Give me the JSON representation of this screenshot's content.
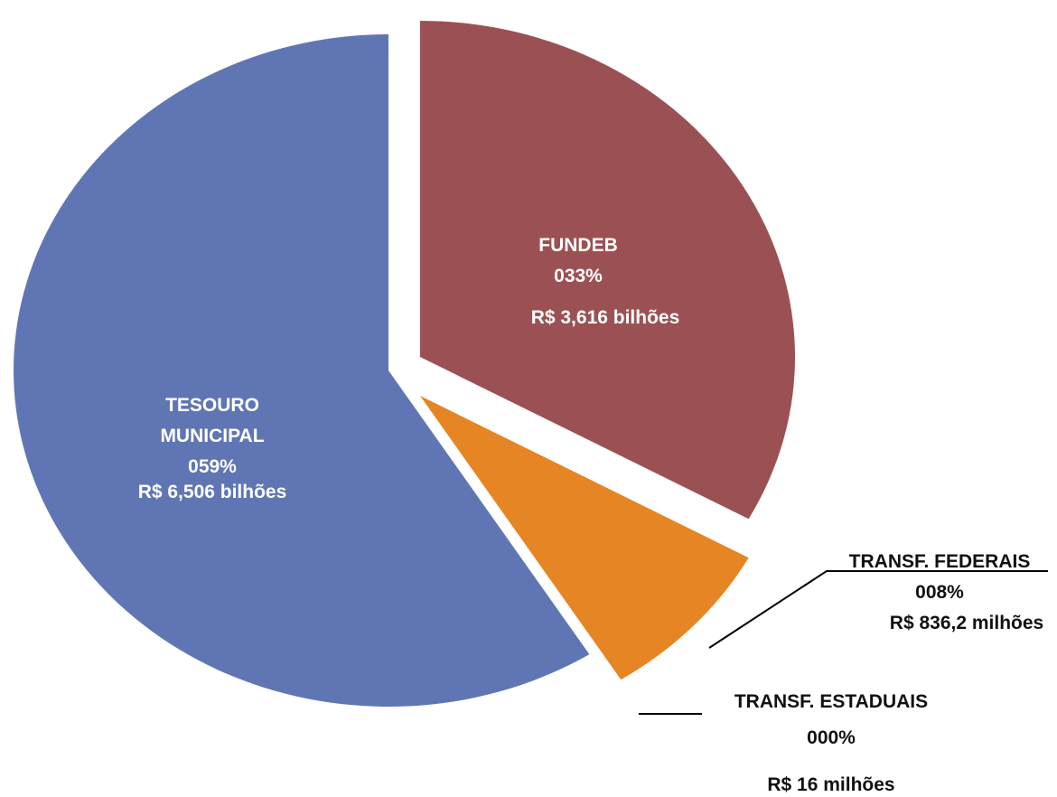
{
  "chart_data": {
    "type": "pie",
    "categories": [
      "FUNDEB",
      "TRANSF. FEDERAIS",
      "TRANSF. ESTADUAIS",
      "TESOURO MUNICIPAL"
    ],
    "values": [
      33,
      8,
      0,
      59
    ],
    "value_labels": [
      "033%",
      "008%",
      "000%",
      "059%"
    ],
    "amount_labels": [
      "R$ 3,616 bilhões",
      "R$ 836,2 milhões",
      "R$ 16 milhões",
      "R$ 6,506 bilhões"
    ],
    "colors": [
      "#9b5153",
      "#e58524",
      "#c9b48c",
      "#6076b4"
    ]
  }
}
